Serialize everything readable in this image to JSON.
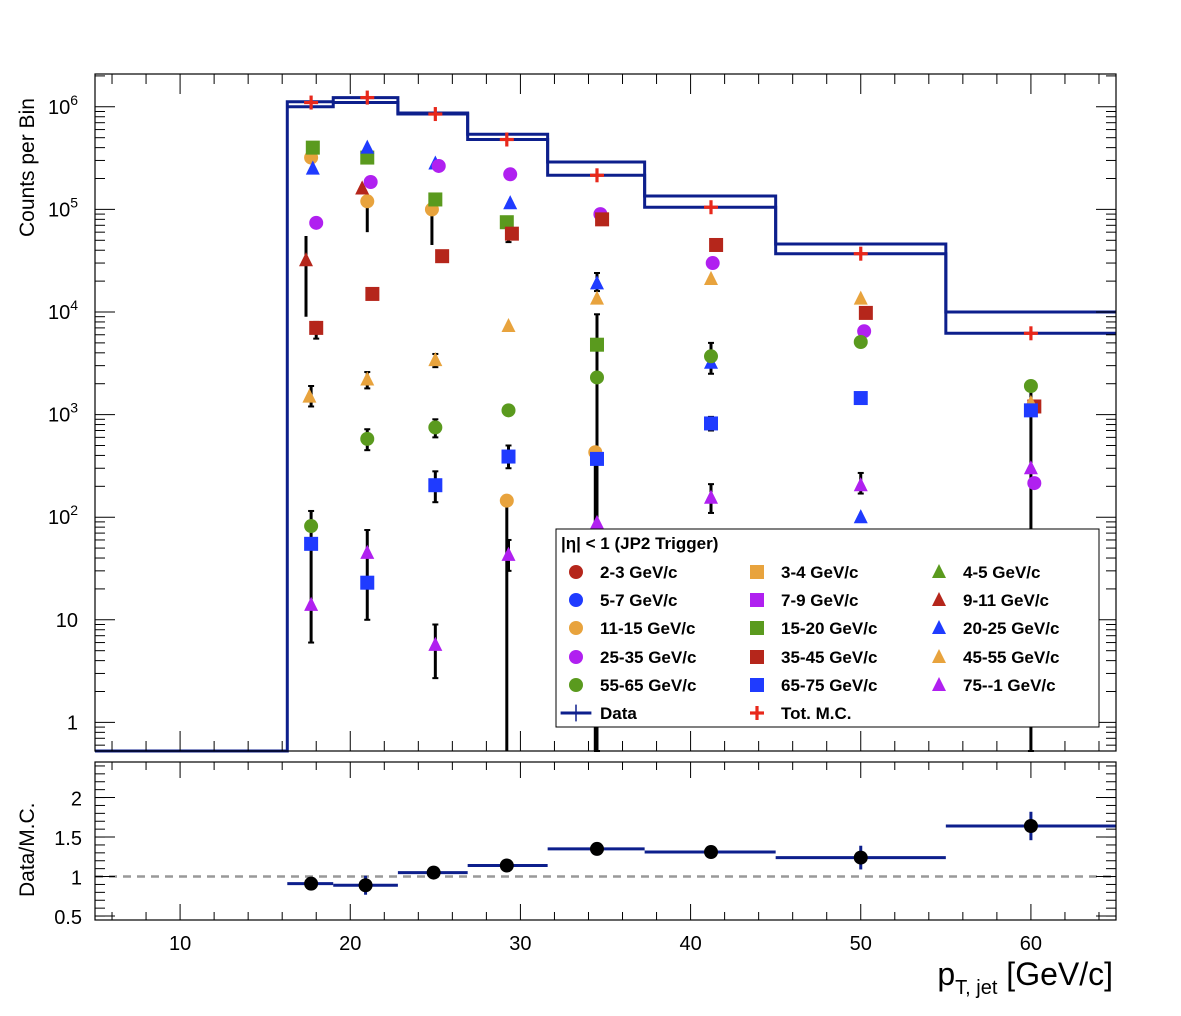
{
  "chart_data": [
    {
      "type": "scatter",
      "panel": "top",
      "ylabel": "Counts per Bin",
      "xlim": [
        5,
        65
      ],
      "ylim": [
        0.5,
        2000000
      ],
      "y_scale": "log",
      "ytick_labels": [
        {
          "v": 1,
          "label": "1"
        },
        {
          "v": 10,
          "label": "10"
        },
        {
          "v": 100,
          "label": "10",
          "exp": "2"
        },
        {
          "v": 1000,
          "label": "10",
          "exp": "3"
        },
        {
          "v": 10000,
          "label": "10",
          "exp": "4"
        },
        {
          "v": 100000,
          "label": "10",
          "exp": "5"
        },
        {
          "v": 1000000,
          "label": "10",
          "exp": "6"
        }
      ],
      "legend_title": "|η| < 1 (JP2 Trigger)",
      "legend_position": "bottom-right",
      "legend": [
        {
          "label": "2-3 GeV/c",
          "marker": "circle",
          "color": "#b5261b"
        },
        {
          "label": "3-4 GeV/c",
          "marker": "square",
          "color": "#e8a33d"
        },
        {
          "label": "4-5 GeV/c",
          "marker": "triangle",
          "color": "#5a9a1e"
        },
        {
          "label": "5-7 GeV/c",
          "marker": "circle",
          "color": "#1f3bff"
        },
        {
          "label": "7-9 GeV/c",
          "marker": "square",
          "color": "#b020f0"
        },
        {
          "label": "9-11 GeV/c",
          "marker": "triangle",
          "color": "#b5261b"
        },
        {
          "label": "11-15 GeV/c",
          "marker": "circle",
          "color": "#e8a33d"
        },
        {
          "label": "15-20 GeV/c",
          "marker": "square",
          "color": "#5a9a1e"
        },
        {
          "label": "20-25 GeV/c",
          "marker": "triangle",
          "color": "#1f3bff"
        },
        {
          "label": "25-35 GeV/c",
          "marker": "circle",
          "color": "#b020f0"
        },
        {
          "label": "35-45 GeV/c",
          "marker": "square",
          "color": "#b5261b"
        },
        {
          "label": "45-55 GeV/c",
          "marker": "triangle",
          "color": "#e8a33d"
        },
        {
          "label": "55-65 GeV/c",
          "marker": "circle",
          "color": "#5a9a1e"
        },
        {
          "label": "65-75 GeV/c",
          "marker": "square",
          "color": "#1f3bff"
        },
        {
          "label": "75--1 GeV/c",
          "marker": "triangle",
          "color": "#b020f0"
        },
        {
          "label": "Data",
          "marker": "line",
          "color": "#0d1f8c"
        },
        {
          "label": "Tot. M.C.",
          "marker": "cross",
          "color": "#e8281b"
        }
      ],
      "data_hist": {
        "name": "Data",
        "color": "#0d1f8c",
        "bins": [
          {
            "x0": 16.3,
            "x1": 19.0,
            "y": 1000000
          },
          {
            "x0": 19.0,
            "x1": 22.8,
            "y": 1100000
          },
          {
            "x0": 22.8,
            "x1": 26.9,
            "y": 870000
          },
          {
            "x0": 26.9,
            "x1": 31.6,
            "y": 540000
          },
          {
            "x0": 31.6,
            "x1": 37.3,
            "y": 290000
          },
          {
            "x0": 37.3,
            "x1": 45.0,
            "y": 135000
          },
          {
            "x0": 45.0,
            "x1": 55.0,
            "y": 46000
          },
          {
            "x0": 55.0,
            "x1": 65.0,
            "y": 10000
          }
        ]
      },
      "mc_hist": {
        "color": "#0d1f8c",
        "bins": [
          {
            "x0": 5.0,
            "x1": 16.3,
            "y": 0.5
          },
          {
            "x0": 16.3,
            "x1": 19.0,
            "y": 1120000
          },
          {
            "x0": 19.0,
            "x1": 22.8,
            "y": 1230000
          },
          {
            "x0": 22.8,
            "x1": 26.9,
            "y": 850000
          },
          {
            "x0": 26.9,
            "x1": 31.6,
            "y": 480000
          },
          {
            "x0": 31.6,
            "x1": 37.3,
            "y": 215000
          },
          {
            "x0": 37.3,
            "x1": 45.0,
            "y": 105000
          },
          {
            "x0": 45.0,
            "x1": 55.0,
            "y": 37000
          },
          {
            "x0": 55.0,
            "x1": 65.0,
            "y": 6200
          }
        ]
      },
      "series": [
        {
          "name": "Tot. M.C.",
          "marker": "cross",
          "color": "#e8281b",
          "points": [
            {
              "x": 17.7,
              "y": 1100000
            },
            {
              "x": 21.0,
              "y": 1230000
            },
            {
              "x": 25.0,
              "y": 850000
            },
            {
              "x": 29.2,
              "y": 480000
            },
            {
              "x": 34.5,
              "y": 215000
            },
            {
              "x": 41.2,
              "y": 105000
            },
            {
              "x": 50.0,
              "y": 37000
            },
            {
              "x": 60.0,
              "y": 6200
            }
          ]
        },
        {
          "name": "11-15 GeV/c",
          "marker": "circle",
          "color": "#e8a33d",
          "points": [
            {
              "x": 17.7,
              "y": 320000
            },
            {
              "x": 21.0,
              "y": 120000,
              "lo": 60000
            },
            {
              "x": 24.8,
              "y": 100000,
              "lo": 45000
            },
            {
              "x": 29.2,
              "y": 145,
              "lo": 0.5
            },
            {
              "x": 34.4,
              "y": 430,
              "lo": 0.5
            }
          ]
        },
        {
          "name": "15-20 GeV/c",
          "marker": "square",
          "color": "#5a9a1e",
          "points": [
            {
              "x": 17.8,
              "y": 400000
            },
            {
              "x": 21.0,
              "y": 320000
            },
            {
              "x": 25.0,
              "y": 125000
            },
            {
              "x": 29.2,
              "y": 75000
            },
            {
              "x": 34.5,
              "y": 4800
            }
          ]
        },
        {
          "name": "20-25 GeV/c",
          "marker": "triangle",
          "color": "#1f3bff",
          "points": [
            {
              "x": 17.8,
              "y": 250000
            },
            {
              "x": 21.0,
              "y": 400000
            },
            {
              "x": 25.0,
              "y": 280000
            },
            {
              "x": 29.4,
              "y": 115000
            },
            {
              "x": 34.5,
              "y": 19000
            },
            {
              "x": 41.2,
              "y": 3200
            },
            {
              "x": 50.0,
              "y": 100
            }
          ]
        },
        {
          "name": "9-11 GeV/c",
          "marker": "triangle",
          "color": "#b5261b",
          "points": [
            {
              "x": 17.4,
              "y": 32000,
              "lo": 9000,
              "hi": 55000
            },
            {
              "x": 20.7,
              "y": 160000
            }
          ]
        },
        {
          "name": "25-35 GeV/c",
          "marker": "circle",
          "color": "#b020f0",
          "points": [
            {
              "x": 18.0,
              "y": 74000
            },
            {
              "x": 21.2,
              "y": 185000
            },
            {
              "x": 25.2,
              "y": 265000
            },
            {
              "x": 29.4,
              "y": 220000
            },
            {
              "x": 34.7,
              "y": 90000
            },
            {
              "x": 41.3,
              "y": 30000
            },
            {
              "x": 50.2,
              "y": 6500
            },
            {
              "x": 60.2,
              "y": 215
            }
          ]
        },
        {
          "name": "35-45 GeV/c",
          "marker": "square",
          "color": "#b5261b",
          "points": [
            {
              "x": 18.0,
              "y": 7000
            },
            {
              "x": 21.3,
              "y": 15000
            },
            {
              "x": 25.4,
              "y": 35000
            },
            {
              "x": 29.5,
              "y": 58000
            },
            {
              "x": 34.8,
              "y": 80000
            },
            {
              "x": 41.5,
              "y": 45000
            },
            {
              "x": 50.3,
              "y": 9800
            },
            {
              "x": 60.2,
              "y": 1200
            }
          ]
        },
        {
          "name": "45-55 GeV/c",
          "marker": "triangle",
          "color": "#e8a33d",
          "points": [
            {
              "x": 17.6,
              "y": 1500
            },
            {
              "x": 21.0,
              "y": 2200
            },
            {
              "x": 25.0,
              "y": 3400
            },
            {
              "x": 29.3,
              "y": 7300
            },
            {
              "x": 34.5,
              "y": 13500
            },
            {
              "x": 41.2,
              "y": 21000
            },
            {
              "x": 50.0,
              "y": 13500
            },
            {
              "x": 60.0,
              "y": 1300
            }
          ]
        },
        {
          "name": "55-65 GeV/c",
          "marker": "circle",
          "color": "#5a9a1e",
          "points": [
            {
              "x": 17.7,
              "y": 82
            },
            {
              "x": 21.0,
              "y": 580
            },
            {
              "x": 25.0,
              "y": 750
            },
            {
              "x": 29.3,
              "y": 1100
            },
            {
              "x": 34.5,
              "y": 2300
            },
            {
              "x": 41.2,
              "y": 3700
            },
            {
              "x": 50.0,
              "y": 5100
            },
            {
              "x": 60.0,
              "y": 1900
            }
          ]
        },
        {
          "name": "65-75 GeV/c",
          "marker": "square",
          "color": "#1f3bff",
          "points": [
            {
              "x": 17.7,
              "y": 55
            },
            {
              "x": 21.0,
              "y": 23
            },
            {
              "x": 25.0,
              "y": 205
            },
            {
              "x": 29.3,
              "y": 390
            },
            {
              "x": 34.5,
              "y": 370
            },
            {
              "x": 41.2,
              "y": 820
            },
            {
              "x": 50.0,
              "y": 1450
            },
            {
              "x": 60.0,
              "y": 1100
            }
          ]
        },
        {
          "name": "75--1 GeV/c",
          "marker": "triangle",
          "color": "#b020f0",
          "points": [
            {
              "x": 17.7,
              "y": 14
            },
            {
              "x": 21.0,
              "y": 45
            },
            {
              "x": 25.0,
              "y": 5.7
            },
            {
              "x": 29.3,
              "y": 43
            },
            {
              "x": 34.5,
              "y": 88
            },
            {
              "x": 41.2,
              "y": 155
            },
            {
              "x": 50.0,
              "y": 205
            },
            {
              "x": 60.0,
              "y": 300
            }
          ]
        }
      ],
      "error_bars": [
        {
          "x": 17.7,
          "lo": 6,
          "hi": 115
        },
        {
          "x": 17.7,
          "lo": 1200,
          "hi": 1900
        },
        {
          "x": 18.0,
          "lo": 5500,
          "hi": 8000
        },
        {
          "x": 21.0,
          "lo": 10,
          "hi": 75
        },
        {
          "x": 21.0,
          "lo": 450,
          "hi": 720
        },
        {
          "x": 21.0,
          "lo": 1800,
          "hi": 2600
        },
        {
          "x": 25.0,
          "lo": 2.7,
          "hi": 9
        },
        {
          "x": 25.0,
          "lo": 140,
          "hi": 280
        },
        {
          "x": 25.0,
          "lo": 600,
          "hi": 900
        },
        {
          "x": 25.0,
          "lo": 2900,
          "hi": 3900
        },
        {
          "x": 29.3,
          "lo": 30,
          "hi": 60
        },
        {
          "x": 29.3,
          "lo": 300,
          "hi": 500
        },
        {
          "x": 29.3,
          "lo": 48000,
          "hi": 60000
        },
        {
          "x": 34.5,
          "lo": 0.5,
          "hi": 9500
        },
        {
          "x": 34.5,
          "lo": 16000,
          "hi": 24000
        },
        {
          "x": 41.2,
          "lo": 110,
          "hi": 210
        },
        {
          "x": 41.2,
          "lo": 700,
          "hi": 950
        },
        {
          "x": 41.2,
          "lo": 2500,
          "hi": 5000
        },
        {
          "x": 50.0,
          "lo": 170,
          "hi": 270
        },
        {
          "x": 60.0,
          "lo": 0.5,
          "hi": 1700
        }
      ]
    },
    {
      "type": "scatter",
      "panel": "bottom",
      "ylabel": "Data/M.C.",
      "xlabel_main": "p",
      "xlabel_sub": "T, jet",
      "xlabel_unit": " [GeV/c]",
      "xlim": [
        5,
        65
      ],
      "ylim": [
        0.45,
        2.45
      ],
      "reference_line": 1,
      "xticks": [
        {
          "v": 10,
          "label": "10"
        },
        {
          "v": 20,
          "label": "20"
        },
        {
          "v": 30,
          "label": "30"
        },
        {
          "v": 40,
          "label": "40"
        },
        {
          "v": 50,
          "label": "50"
        },
        {
          "v": 60,
          "label": "60"
        }
      ],
      "yticks": [
        {
          "v": 0.5,
          "label": "0.5"
        },
        {
          "v": 1,
          "label": "1"
        },
        {
          "v": 1.5,
          "label": "1.5"
        },
        {
          "v": 2,
          "label": "2"
        }
      ],
      "series": [
        {
          "marker": "circle",
          "color": "#000000",
          "points": [
            {
              "x": 17.7,
              "x0": 16.3,
              "x1": 19.0,
              "y": 0.91,
              "err": 0.08
            },
            {
              "x": 20.9,
              "x0": 19.0,
              "x1": 22.8,
              "y": 0.89,
              "err": 0.12
            },
            {
              "x": 24.9,
              "x0": 22.8,
              "x1": 26.9,
              "y": 1.05,
              "err": 0.04
            },
            {
              "x": 29.2,
              "x0": 26.9,
              "x1": 31.6,
              "y": 1.14,
              "err": 0.04
            },
            {
              "x": 34.5,
              "x0": 31.6,
              "x1": 37.3,
              "y": 1.35,
              "err": 0.05
            },
            {
              "x": 41.2,
              "x0": 37.3,
              "x1": 45.0,
              "y": 1.31,
              "err": 0.07
            },
            {
              "x": 50.0,
              "x0": 45.0,
              "x1": 55.0,
              "y": 1.24,
              "err": 0.15
            },
            {
              "x": 60.0,
              "x0": 55.0,
              "x1": 65.0,
              "y": 1.64,
              "err": 0.18
            }
          ]
        }
      ]
    }
  ]
}
